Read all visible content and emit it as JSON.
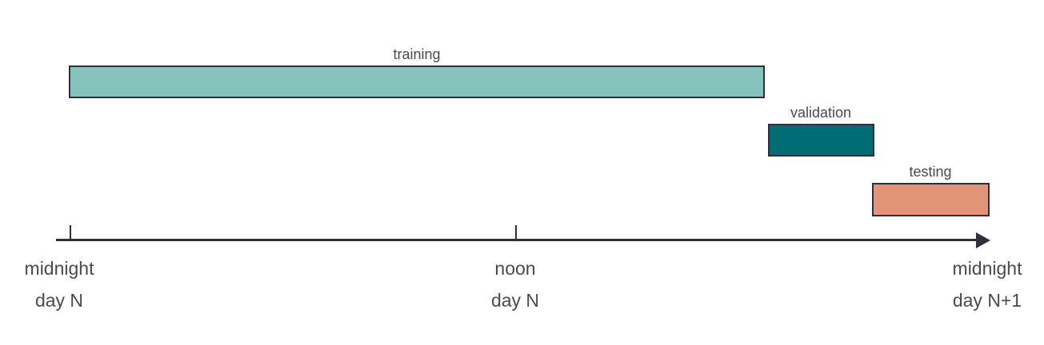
{
  "segments": [
    {
      "label": "training",
      "color": "#86c3bd"
    },
    {
      "label": "validation",
      "color": "#006d75"
    },
    {
      "label": "testing",
      "color": "#e29478"
    }
  ],
  "axis": {
    "ticks": [
      {
        "line1": "midnight",
        "line2": "day N"
      },
      {
        "line1": "noon",
        "line2": "day N"
      },
      {
        "line1": "midnight",
        "line2": "day N+1"
      }
    ]
  }
}
